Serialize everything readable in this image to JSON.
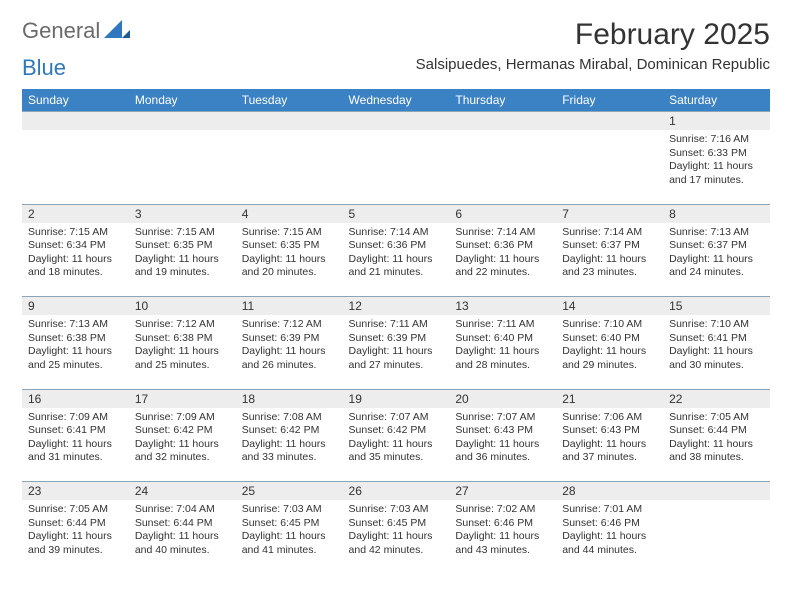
{
  "brand": {
    "word1": "General",
    "word2": "Blue"
  },
  "title": "February 2025",
  "location": "Salsipuedes, Hermanas Mirabal, Dominican Republic",
  "colors": {
    "header_bg": "#3b82c4",
    "header_fg": "#ffffff",
    "daynum_bg": "#ededed",
    "border": "#8aa4b8",
    "text": "#333333",
    "brand_gray": "#6b6b6b",
    "brand_blue": "#2f78bf"
  },
  "weekdays": [
    "Sunday",
    "Monday",
    "Tuesday",
    "Wednesday",
    "Thursday",
    "Friday",
    "Saturday"
  ],
  "first_weekday_index": 6,
  "days": [
    {
      "n": 1,
      "sunrise": "7:16 AM",
      "sunset": "6:33 PM",
      "daylight": "11 hours and 17 minutes."
    },
    {
      "n": 2,
      "sunrise": "7:15 AM",
      "sunset": "6:34 PM",
      "daylight": "11 hours and 18 minutes."
    },
    {
      "n": 3,
      "sunrise": "7:15 AM",
      "sunset": "6:35 PM",
      "daylight": "11 hours and 19 minutes."
    },
    {
      "n": 4,
      "sunrise": "7:15 AM",
      "sunset": "6:35 PM",
      "daylight": "11 hours and 20 minutes."
    },
    {
      "n": 5,
      "sunrise": "7:14 AM",
      "sunset": "6:36 PM",
      "daylight": "11 hours and 21 minutes."
    },
    {
      "n": 6,
      "sunrise": "7:14 AM",
      "sunset": "6:36 PM",
      "daylight": "11 hours and 22 minutes."
    },
    {
      "n": 7,
      "sunrise": "7:14 AM",
      "sunset": "6:37 PM",
      "daylight": "11 hours and 23 minutes."
    },
    {
      "n": 8,
      "sunrise": "7:13 AM",
      "sunset": "6:37 PM",
      "daylight": "11 hours and 24 minutes."
    },
    {
      "n": 9,
      "sunrise": "7:13 AM",
      "sunset": "6:38 PM",
      "daylight": "11 hours and 25 minutes."
    },
    {
      "n": 10,
      "sunrise": "7:12 AM",
      "sunset": "6:38 PM",
      "daylight": "11 hours and 25 minutes."
    },
    {
      "n": 11,
      "sunrise": "7:12 AM",
      "sunset": "6:39 PM",
      "daylight": "11 hours and 26 minutes."
    },
    {
      "n": 12,
      "sunrise": "7:11 AM",
      "sunset": "6:39 PM",
      "daylight": "11 hours and 27 minutes."
    },
    {
      "n": 13,
      "sunrise": "7:11 AM",
      "sunset": "6:40 PM",
      "daylight": "11 hours and 28 minutes."
    },
    {
      "n": 14,
      "sunrise": "7:10 AM",
      "sunset": "6:40 PM",
      "daylight": "11 hours and 29 minutes."
    },
    {
      "n": 15,
      "sunrise": "7:10 AM",
      "sunset": "6:41 PM",
      "daylight": "11 hours and 30 minutes."
    },
    {
      "n": 16,
      "sunrise": "7:09 AM",
      "sunset": "6:41 PM",
      "daylight": "11 hours and 31 minutes."
    },
    {
      "n": 17,
      "sunrise": "7:09 AM",
      "sunset": "6:42 PM",
      "daylight": "11 hours and 32 minutes."
    },
    {
      "n": 18,
      "sunrise": "7:08 AM",
      "sunset": "6:42 PM",
      "daylight": "11 hours and 33 minutes."
    },
    {
      "n": 19,
      "sunrise": "7:07 AM",
      "sunset": "6:42 PM",
      "daylight": "11 hours and 35 minutes."
    },
    {
      "n": 20,
      "sunrise": "7:07 AM",
      "sunset": "6:43 PM",
      "daylight": "11 hours and 36 minutes."
    },
    {
      "n": 21,
      "sunrise": "7:06 AM",
      "sunset": "6:43 PM",
      "daylight": "11 hours and 37 minutes."
    },
    {
      "n": 22,
      "sunrise": "7:05 AM",
      "sunset": "6:44 PM",
      "daylight": "11 hours and 38 minutes."
    },
    {
      "n": 23,
      "sunrise": "7:05 AM",
      "sunset": "6:44 PM",
      "daylight": "11 hours and 39 minutes."
    },
    {
      "n": 24,
      "sunrise": "7:04 AM",
      "sunset": "6:44 PM",
      "daylight": "11 hours and 40 minutes."
    },
    {
      "n": 25,
      "sunrise": "7:03 AM",
      "sunset": "6:45 PM",
      "daylight": "11 hours and 41 minutes."
    },
    {
      "n": 26,
      "sunrise": "7:03 AM",
      "sunset": "6:45 PM",
      "daylight": "11 hours and 42 minutes."
    },
    {
      "n": 27,
      "sunrise": "7:02 AM",
      "sunset": "6:46 PM",
      "daylight": "11 hours and 43 minutes."
    },
    {
      "n": 28,
      "sunrise": "7:01 AM",
      "sunset": "6:46 PM",
      "daylight": "11 hours and 44 minutes."
    }
  ],
  "labels": {
    "sunrise": "Sunrise: ",
    "sunset": "Sunset: ",
    "daylight": "Daylight: "
  }
}
